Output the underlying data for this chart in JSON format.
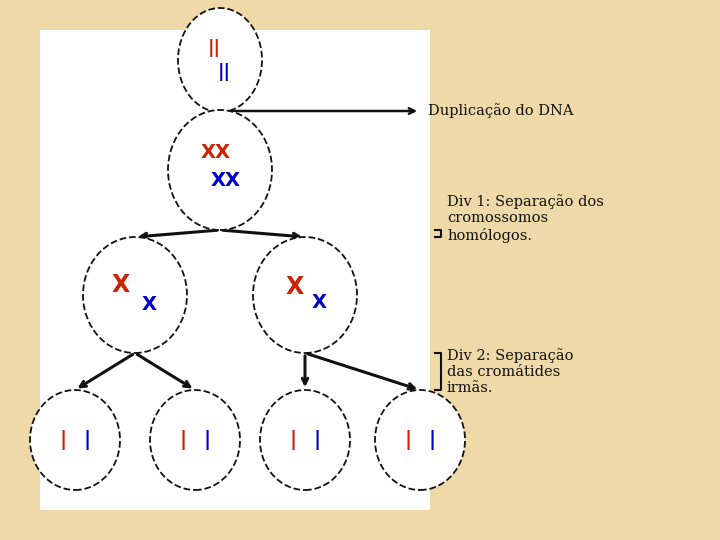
{
  "bg_outer": "#f0d9a8",
  "bg_inner": "#ffffff",
  "title1": "Duplicação do DNA",
  "title2": "Div 1: Separação dos\ncromossomos\nhomólogos.",
  "title3": "Div 2: Separação\ndas cromátides\nirmãs.",
  "red": "#cc2200",
  "blue": "#0000cc",
  "black": "#111111",
  "font_size": 10.5
}
